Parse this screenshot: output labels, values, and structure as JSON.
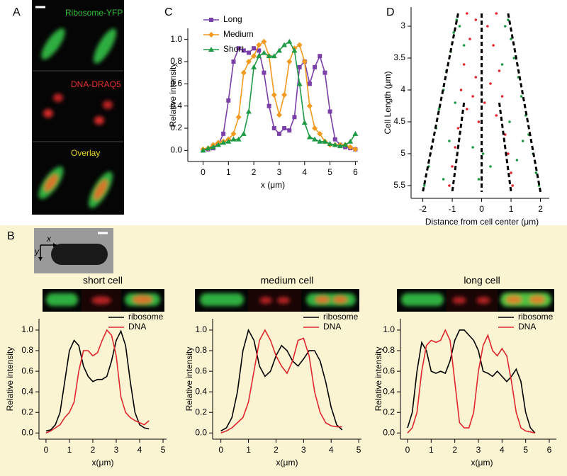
{
  "panel_labels": [
    "A",
    "B",
    "C",
    "D"
  ],
  "panel_a": {
    "channels": [
      "Ribosome-YFP",
      "DNA-DRAQ5",
      "Overlay"
    ]
  },
  "panel_b": {
    "axes": [
      "x",
      "y"
    ]
  },
  "chart_data": [
    {
      "type": "line",
      "xlabel": "x (μm)",
      "ylabel": "Relative intensity",
      "legend": "upper left",
      "xlim": [
        -0.6,
        6.1
      ],
      "ylim": [
        -0.1,
        1.1
      ],
      "xticks": [
        0,
        1,
        2,
        3,
        4,
        5,
        6
      ],
      "yticks": [
        {
          "value": 0,
          "label": "0.0"
        },
        {
          "value": 0.2,
          "label": "0.2"
        },
        {
          "value": 0.4,
          "label": "0.4"
        },
        {
          "value": 0.6,
          "label": "0.6"
        },
        {
          "value": 0.8,
          "label": "0.8"
        },
        {
          "value": 1,
          "label": "1.0"
        }
      ],
      "x": [
        0,
        0.2,
        0.4,
        0.6,
        0.8,
        1,
        1.2,
        1.4,
        1.6,
        1.8,
        2,
        2.2,
        2.4,
        2.6,
        2.8,
        3,
        3.2,
        3.4,
        3.6,
        3.8,
        4,
        4.2,
        4.4,
        4.6,
        4.8,
        5,
        5.2,
        5.4,
        5.6,
        5.8,
        6
      ],
      "series": [
        {
          "name": "Long",
          "color": "#7b3fa8",
          "marker": "square",
          "values": [
            0,
            0.01,
            0.02,
            0.05,
            0.15,
            0.45,
            0.8,
            0.92,
            0.9,
            0.88,
            0.92,
            0.9,
            0.7,
            0.4,
            0.2,
            0.15,
            0.2,
            0.18,
            0.3,
            0.75,
            0.8,
            0.6,
            0.75,
            0.85,
            0.7,
            0.35,
            0.1,
            0.05,
            0.03,
            0.02,
            0.01
          ]
        },
        {
          "name": "Medium",
          "color": "#f29a1f",
          "marker": "diamond",
          "values": [
            0.01,
            0.02,
            0.05,
            0.07,
            0.08,
            0.1,
            0.15,
            0.3,
            0.7,
            0.8,
            0.85,
            0.95,
            0.98,
            0.85,
            0.5,
            0.32,
            0.5,
            0.8,
            0.92,
            0.95,
            0.8,
            0.4,
            0.2,
            0.15,
            0.08,
            0.05,
            0.05,
            0.05,
            0.05,
            0.03,
            0.01
          ]
        },
        {
          "name": "Short",
          "color": "#1e9a45",
          "marker": "triangle",
          "values": [
            0,
            0.02,
            0.03,
            0.05,
            0.07,
            0.08,
            0.1,
            0.1,
            0.15,
            0.35,
            0.75,
            0.85,
            0.88,
            0.85,
            0.85,
            0.9,
            0.95,
            0.98,
            0.9,
            0.6,
            0.25,
            0.12,
            0.1,
            0.08,
            0.08,
            0.06,
            0.05,
            0.04,
            0.05,
            0.08,
            0.15
          ]
        }
      ]
    },
    {
      "type": "scatter",
      "xlabel": "Distance from cell center (μm)",
      "ylabel": "Cell Length (μm)",
      "xlim": [
        -2.4,
        2.3
      ],
      "ylim": [
        5.7,
        2.7
      ],
      "xticks": [
        -2,
        -1,
        0,
        1,
        2
      ],
      "yticks": [
        3,
        3.5,
        4,
        4.5,
        5,
        5.5
      ],
      "series": [
        {
          "color": "#1e9a45",
          "x": [
            -0.85,
            0.9,
            -0.95,
            1.0,
            -1.05,
            1.1,
            -1.2,
            1.25,
            -1.3,
            1.35,
            -1.45,
            1.5,
            -1.55,
            1.6,
            -1.7,
            1.75,
            -1.8,
            1.85,
            -1.95,
            1.95,
            -0.6,
            0.7,
            -0.9,
            0.95,
            -1.1,
            1.2,
            -0.3,
            0.3,
            -0.1,
            0.05,
            -1.3,
            1.4,
            -0.75,
            0.8
          ],
          "y": [
            2.9,
            2.9,
            3.1,
            3.2,
            3.4,
            3.5,
            3.7,
            3.8,
            4.0,
            4.1,
            4.3,
            4.4,
            4.6,
            4.7,
            4.9,
            5.0,
            5.2,
            5.3,
            5.5,
            5.5,
            3.3,
            3.6,
            4.2,
            4.5,
            4.8,
            5.1,
            4.9,
            5.2,
            5.4,
            5.0,
            5.4,
            4.8,
            3.0,
            3.0
          ]
        },
        {
          "color": "#e0262e",
          "x": [
            -0.5,
            0.5,
            -0.2,
            0.2,
            -0.4,
            0.4,
            0,
            -0.6,
            0.6,
            -0.2,
            0.3,
            -0.7,
            0.7,
            -0.5,
            0.5,
            -0.1,
            -0.8,
            0.8,
            -0.9,
            0.9,
            -1.0,
            1.0,
            -1.1,
            1.05,
            0.1,
            -0.3
          ],
          "y": [
            2.8,
            2.8,
            2.9,
            3.0,
            3.2,
            3.3,
            3.4,
            3.6,
            3.7,
            3.8,
            3.9,
            4.0,
            4.1,
            4.3,
            4.4,
            4.5,
            4.6,
            4.7,
            4.9,
            5.0,
            5.2,
            5.3,
            5.5,
            5.5,
            4.2,
            4.1
          ]
        }
      ],
      "lines": [
        {
          "x": [
            -0.8,
            -2.0
          ],
          "y": [
            2.8,
            5.6
          ]
        },
        {
          "x": [
            -0.6,
            -1.0
          ],
          "y": [
            4.2,
            5.6
          ]
        },
        {
          "x": [
            0,
            0
          ],
          "y": [
            2.8,
            5.6
          ]
        },
        {
          "x": [
            0.6,
            1.0
          ],
          "y": [
            4.2,
            5.6
          ]
        },
        {
          "x": [
            0.9,
            2.0
          ],
          "y": [
            2.8,
            5.6
          ]
        }
      ]
    },
    {
      "type": "line",
      "title": "short cell",
      "xlabel": "x(μm)",
      "ylabel": "Relative intensity",
      "legend": "upper right",
      "xlim": [
        -0.3,
        5.15
      ],
      "ylim": [
        -0.06,
        1.11
      ],
      "xticks": [
        0,
        1,
        2,
        3,
        4,
        5
      ],
      "yticks": [
        {
          "value": 0,
          "label": "0.0"
        },
        {
          "value": 0.2,
          "label": "0.2"
        },
        {
          "value": 0.4,
          "label": "0.4"
        },
        {
          "value": 0.6,
          "label": "0.6"
        },
        {
          "value": 0.8,
          "label": "0.8"
        },
        {
          "value": 1,
          "label": "1.0"
        }
      ],
      "x": [
        0,
        0.2,
        0.4,
        0.6,
        0.8,
        1,
        1.2,
        1.4,
        1.6,
        1.8,
        2,
        2.2,
        2.4,
        2.6,
        2.8,
        3,
        3.2,
        3.4,
        3.6,
        3.8,
        4,
        4.2,
        4.4
      ],
      "series": [
        {
          "name": "ribosome",
          "color": "#000000",
          "values": [
            0.02,
            0.03,
            0.08,
            0.2,
            0.5,
            0.8,
            0.9,
            0.85,
            0.65,
            0.55,
            0.5,
            0.52,
            0.52,
            0.55,
            0.7,
            0.9,
            0.99,
            0.85,
            0.5,
            0.2,
            0.08,
            0.05,
            0.04
          ]
        },
        {
          "name": "DNA",
          "color": "#e0262e",
          "values": [
            0,
            0.02,
            0.05,
            0.08,
            0.15,
            0.2,
            0.3,
            0.6,
            0.8,
            0.8,
            0.75,
            0.78,
            0.9,
            1.0,
            0.95,
            0.75,
            0.35,
            0.2,
            0.15,
            0.12,
            0.1,
            0.08,
            0.12
          ]
        }
      ]
    },
    {
      "type": "line",
      "title": "medium cell",
      "xlabel": "x(μm)",
      "ylabel": "Relative intensity",
      "legend": "upper right",
      "xlim": [
        -0.3,
        5.1
      ],
      "ylim": [
        -0.06,
        1.11
      ],
      "xticks": [
        0,
        1,
        2,
        3,
        4,
        5
      ],
      "yticks": [
        {
          "value": 0,
          "label": "0.0"
        },
        {
          "value": 0.2,
          "label": "0.2"
        },
        {
          "value": 0.4,
          "label": "0.4"
        },
        {
          "value": 0.6,
          "label": "0.6"
        },
        {
          "value": 0.8,
          "label": "0.8"
        },
        {
          "value": 1,
          "label": "1.0"
        }
      ],
      "x": [
        0,
        0.2,
        0.4,
        0.6,
        0.8,
        1,
        1.2,
        1.4,
        1.6,
        1.8,
        2,
        2.2,
        2.4,
        2.6,
        2.8,
        3,
        3.2,
        3.4,
        3.6,
        3.8,
        4,
        4.2,
        4.4
      ],
      "series": [
        {
          "name": "ribosome",
          "color": "#000000",
          "values": [
            0.02,
            0.05,
            0.15,
            0.4,
            0.8,
            1.0,
            0.9,
            0.65,
            0.55,
            0.6,
            0.75,
            0.85,
            0.8,
            0.7,
            0.65,
            0.72,
            0.8,
            0.8,
            0.7,
            0.5,
            0.25,
            0.08,
            0.03
          ]
        },
        {
          "name": "DNA",
          "color": "#e0262e",
          "values": [
            0,
            0.02,
            0.05,
            0.1,
            0.15,
            0.3,
            0.6,
            0.9,
            1.0,
            0.9,
            0.75,
            0.65,
            0.58,
            0.7,
            0.9,
            0.92,
            0.75,
            0.4,
            0.2,
            0.1,
            0.07,
            0.06,
            0.06
          ]
        }
      ]
    },
    {
      "type": "line",
      "title": "long cell",
      "xlabel": "x(μm)",
      "ylabel": "Relative intensity",
      "legend": "upper right",
      "xlim": [
        -0.3,
        6.3
      ],
      "ylim": [
        -0.06,
        1.11
      ],
      "xticks": [
        0,
        1,
        2,
        3,
        4,
        5,
        6
      ],
      "yticks": [
        {
          "value": 0,
          "label": "0.0"
        },
        {
          "value": 0.2,
          "label": "0.2"
        },
        {
          "value": 0.4,
          "label": "0.4"
        },
        {
          "value": 0.6,
          "label": "0.6"
        },
        {
          "value": 0.8,
          "label": "0.8"
        },
        {
          "value": 1,
          "label": "1.0"
        }
      ],
      "x": [
        0,
        0.2,
        0.4,
        0.6,
        0.8,
        1,
        1.2,
        1.4,
        1.6,
        1.8,
        2,
        2.2,
        2.4,
        2.6,
        2.8,
        3,
        3.2,
        3.4,
        3.6,
        3.8,
        4,
        4.2,
        4.4,
        4.6,
        4.8,
        5,
        5.2,
        5.4
      ],
      "series": [
        {
          "name": "ribosome",
          "color": "#000000",
          "values": [
            0.05,
            0.2,
            0.6,
            0.88,
            0.8,
            0.6,
            0.58,
            0.6,
            0.58,
            0.7,
            0.9,
            1.0,
            1.0,
            0.95,
            0.9,
            0.8,
            0.6,
            0.58,
            0.55,
            0.6,
            0.55,
            0.5,
            0.55,
            0.62,
            0.5,
            0.2,
            0.05,
            0
          ]
        },
        {
          "name": "DNA",
          "color": "#e0262e",
          "values": [
            0,
            0.05,
            0.2,
            0.6,
            0.85,
            0.9,
            0.88,
            0.9,
            1.0,
            0.9,
            0.5,
            0.1,
            0.05,
            0.05,
            0.2,
            0.6,
            0.85,
            0.95,
            0.8,
            0.75,
            0.82,
            0.75,
            0.5,
            0.2,
            0.05,
            0.02,
            0.01,
            0
          ]
        }
      ]
    }
  ]
}
